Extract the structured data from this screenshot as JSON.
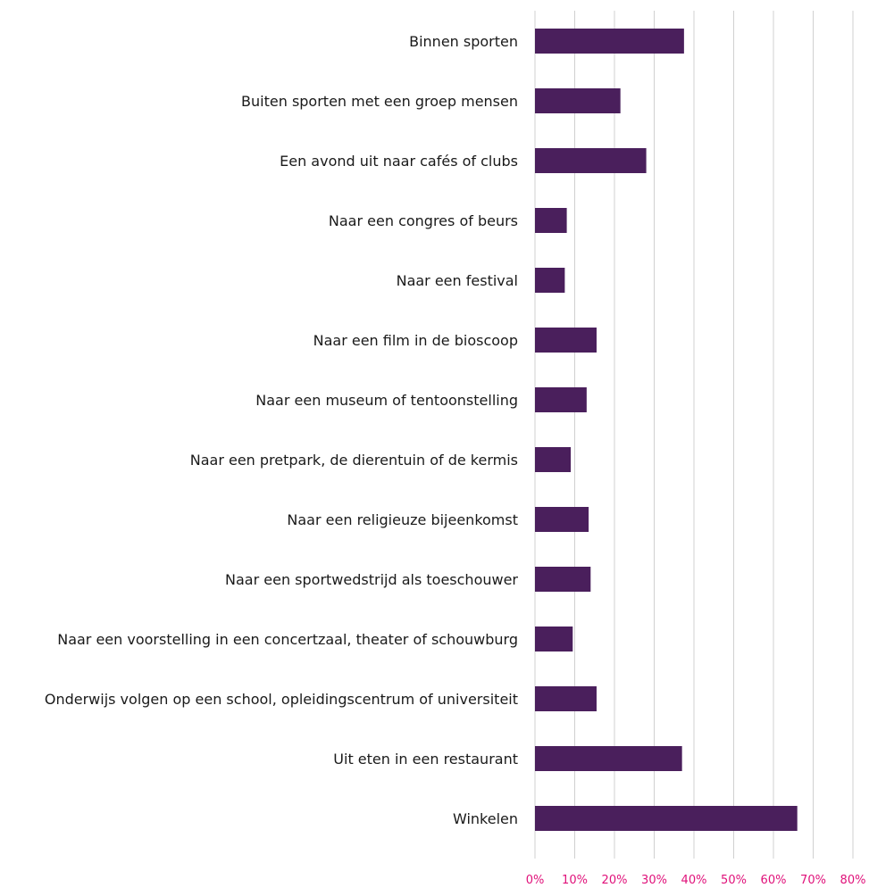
{
  "chart_data": {
    "type": "bar",
    "orientation": "horizontal",
    "categories": [
      "Binnen sporten",
      "Buiten sporten met een groep mensen",
      "Een avond uit naar cafés of clubs",
      "Naar een congres of beurs",
      "Naar een festival",
      "Naar een film in de bioscoop",
      "Naar een museum of tentoonstelling",
      "Naar een pretpark, de dierentuin of de kermis",
      "Naar een religieuze bijeenkomst",
      "Naar een sportwedstrijd als toeschouwer",
      "Naar een voorstelling in een concertzaal, theater of schouwburg",
      "Onderwijs volgen op een school, opleidingscentrum of universiteit",
      "Uit eten in een restaurant",
      "Winkelen"
    ],
    "values": [
      37.5,
      21.5,
      28,
      8,
      7.5,
      15.5,
      13,
      9,
      13.5,
      14,
      9.5,
      15.5,
      37,
      66
    ],
    "xlim": [
      0,
      80
    ],
    "ticks": [
      "0%",
      "10%",
      "20%",
      "30%",
      "40%",
      "50%",
      "60%",
      "70%",
      "80%"
    ],
    "title": "",
    "xlabel": "",
    "ylabel": "",
    "grid": "vertical",
    "legend": "none"
  },
  "colors": {
    "bar": "#4a1f5c",
    "grid": "#d0d0d0",
    "tick_label": "#e0117a",
    "category_label": "#1a1a1a"
  }
}
